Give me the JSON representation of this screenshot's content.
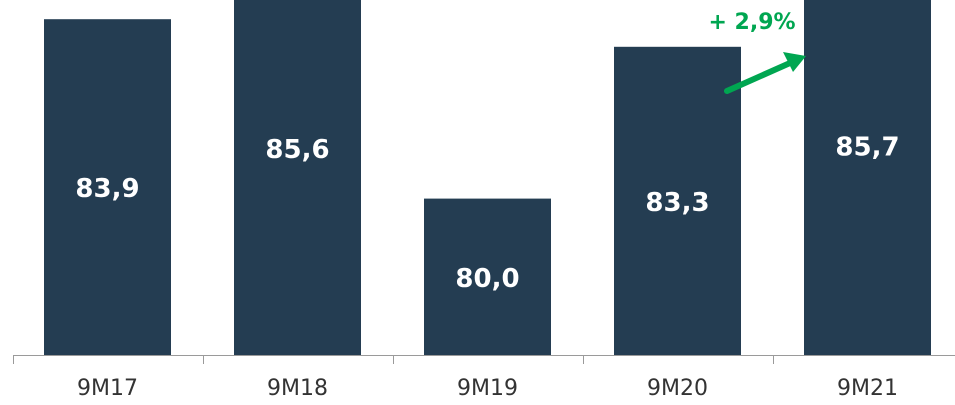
{
  "chart_data": {
    "type": "bar",
    "categories": [
      "9M17",
      "9M18",
      "9M19",
      "9M20",
      "9M21"
    ],
    "values": [
      83.9,
      85.6,
      80.0,
      83.3,
      85.7
    ],
    "value_labels": [
      "83,9",
      "85,6",
      "80,0",
      "83,3",
      "85,7"
    ],
    "annotation": "+ 2,9%",
    "colors": {
      "bar": "#243d52",
      "annotation": "#00a651"
    },
    "grid": false,
    "legend": "none"
  }
}
